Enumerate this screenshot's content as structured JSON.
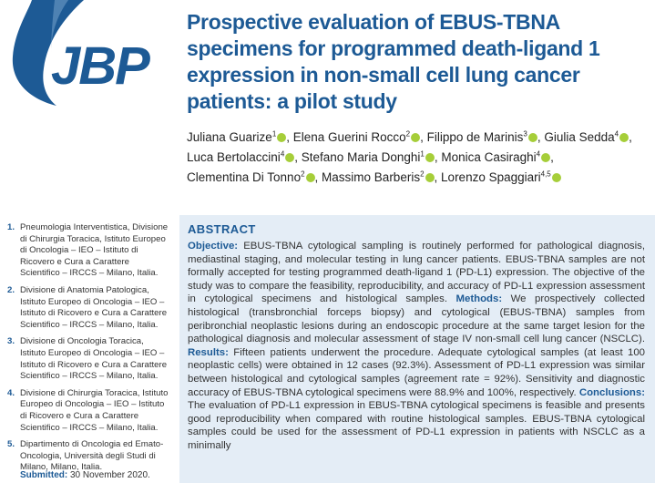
{
  "journal": {
    "logo_text": "JBP",
    "colors": {
      "accent": "#1d5a95",
      "orcid": "#a6ce39",
      "box": "#e4edf6"
    }
  },
  "title": "Prospective evaluation of EBUS-TBNA specimens for programmed death-ligand 1 expression in non-small cell lung cancer patients: a pilot study",
  "authors": [
    {
      "name": "Juliana Guarize",
      "sup": "1"
    },
    {
      "name": "Elena Guerini Rocco",
      "sup": "2"
    },
    {
      "name": "Filippo de Marinis",
      "sup": "3"
    },
    {
      "name": "Giulia Sedda",
      "sup": "4"
    },
    {
      "name": "Luca Bertolaccini",
      "sup": "4"
    },
    {
      "name": "Stefano Maria Donghi",
      "sup": "1"
    },
    {
      "name": "Monica Casiraghi",
      "sup": "4"
    },
    {
      "name": "Clementina Di Tonno",
      "sup": "2"
    },
    {
      "name": "Massimo Barberis",
      "sup": "2"
    },
    {
      "name": "Lorenzo Spaggiari",
      "sup": "4,5"
    }
  ],
  "affiliations": [
    {
      "num": "1.",
      "text": "Pneumologia Interventistica, Divisione di Chirurgia Toracica, Istituto Europeo di Oncologia – IEO – Istituto di Ricovero e Cura a Carattere Scientifico – IRCCS – Milano, Italia."
    },
    {
      "num": "2.",
      "text": "Divisione di Anatomia Patologica, Istituto Europeo di Oncologia – IEO – Istituto di Ricovero e Cura a Carattere Scientifico – IRCCS – Milano, Italia."
    },
    {
      "num": "3.",
      "text": "Divisione di Oncologia Toracica, Istituto Europeo di Oncologia – IEO – Istituto di Ricovero e Cura a Carattere Scientifico – IRCCS – Milano, Italia."
    },
    {
      "num": "4.",
      "text": "Divisione di Chirurgia Toracica, Istituto Europeo di Oncologia – IEO – Istituto di Ricovero e Cura a Carattere Scientifico – IRCCS – Milano, Italia."
    },
    {
      "num": "5.",
      "text": "Dipartimento di Oncologia ed Emato-Oncologia, Università degli Studi di Milano, Milano, Italia."
    }
  ],
  "submitted": {
    "label": "Submitted:",
    "date": "30 November 2020."
  },
  "abstract": {
    "heading": "ABSTRACT",
    "sections": [
      {
        "label": "Objective:",
        "text": "EBUS-TBNA cytological sampling is routinely performed for pathological diagnosis, mediastinal staging, and molecular testing in lung cancer patients. EBUS-TBNA samples are not formally accepted for testing programmed death-ligand 1 (PD-L1) expression. The objective of the study was to compare the feasibility, reproducibility, and accuracy of PD-L1 expression assessment in cytological specimens and histological samples."
      },
      {
        "label": "Methods:",
        "text": "We prospectively collected histological (transbronchial forceps biopsy) and cytological (EBUS-TBNA) samples from peribronchial neoplastic lesions during an endoscopic procedure at the same target lesion for the pathological diagnosis and molecular assessment of stage IV non-small cell lung cancer (NSCLC)."
      },
      {
        "label": "Results:",
        "text": "Fifteen patients underwent the procedure. Adequate cytological samples (at least 100 neoplastic cells) were obtained in 12 cases (92.3%). Assessment of PD-L1 expression was similar between histological and cytological samples (agreement rate = 92%). Sensitivity and diagnostic accuracy of EBUS-TBNA cytological specimens were 88.9% and 100%, respectively."
      },
      {
        "label": "Conclusions:",
        "text": "The evaluation of PD-L1 expression in EBUS-TBNA cytological specimens is feasible and presents good reproducibility when compared with routine histological samples. EBUS-TBNA cytological samples could be used for the assessment of PD-L1 expression in patients with NSCLC as a minimally"
      }
    ]
  }
}
